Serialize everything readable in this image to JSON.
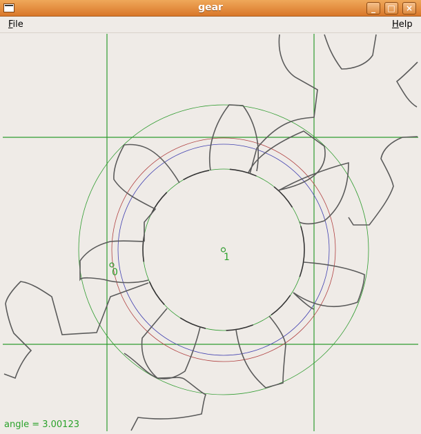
{
  "window": {
    "title": "gear"
  },
  "menubar": {
    "file": "File",
    "help": "Help"
  },
  "canvas": {
    "labels": {
      "gear_center": "1",
      "pitch_point": "0"
    },
    "status": "angle = 3.00123"
  },
  "colors": {
    "gear_outline": "#5a5a5a",
    "guide_line": "#2e9b2e",
    "addendum_circle": "#2e9b2e",
    "pitch_circle": "#b04040",
    "base_circle": "#4040b0"
  }
}
